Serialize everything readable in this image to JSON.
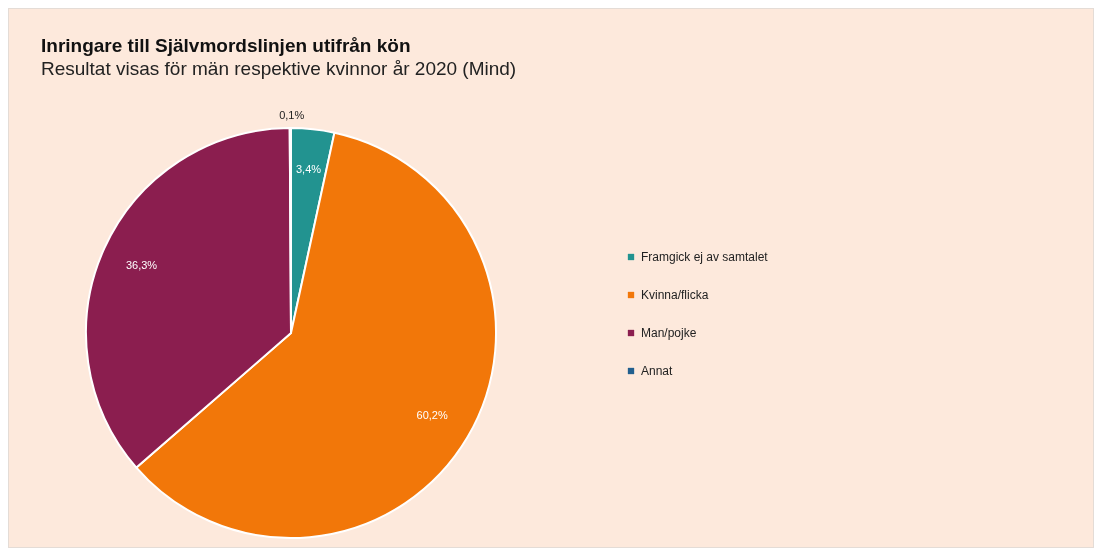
{
  "chart_data": {
    "type": "pie",
    "title": "Inringare till Självmordslinjen utifrån kön",
    "subtitle": "Resultat visas för män respektive kvinnor år 2020 (Mind)",
    "categories": [
      "Framgick ej av samtalet",
      "Kvinna/flicka",
      "Man/pojke",
      "Annat"
    ],
    "values": [
      3.4,
      60.2,
      36.3,
      0.1
    ],
    "colors": [
      "#229390",
      "#f27709",
      "#8b1e4f",
      "#215f8e"
    ],
    "value_labels": [
      "3,4%",
      "60,2%",
      "36,3%",
      "0,1%"
    ],
    "legend": "right"
  }
}
